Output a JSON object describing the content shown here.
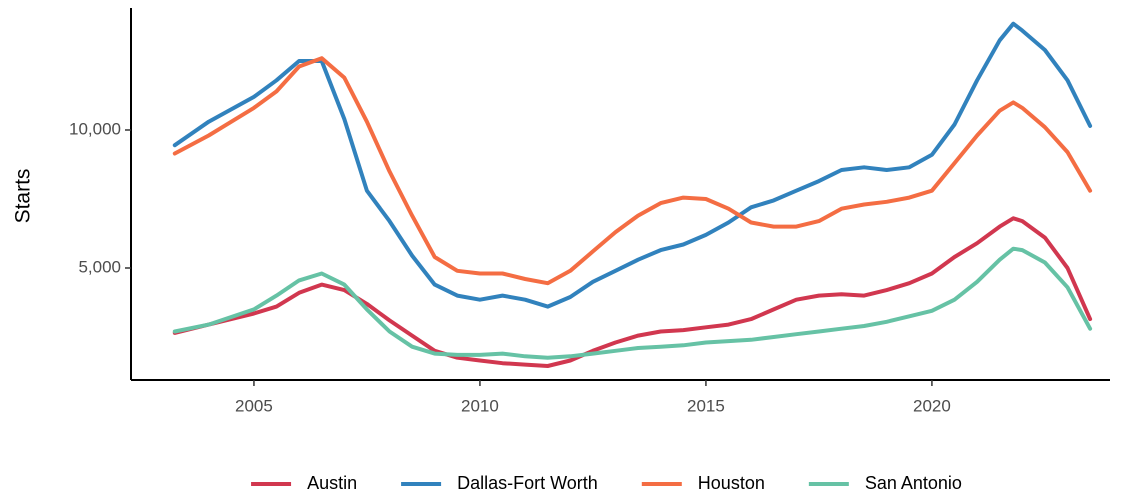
{
  "chart_data": {
    "type": "line",
    "y_label": "Starts",
    "x": [
      2003.25,
      2004,
      2005,
      2005.5,
      2006,
      2006.5,
      2007,
      2007.5,
      2008,
      2008.5,
      2009,
      2009.5,
      2010,
      2010.5,
      2011,
      2011.5,
      2012,
      2012.5,
      2013,
      2013.5,
      2014,
      2014.5,
      2015,
      2015.5,
      2016,
      2016.5,
      2017,
      2017.5,
      2018,
      2018.5,
      2019,
      2019.5,
      2020,
      2020.5,
      2021,
      2021.5,
      2021.8,
      2022,
      2022.5,
      2023,
      2023.5
    ],
    "series": [
      {
        "name": "Austin",
        "color": "#d1374f",
        "values": [
          2650,
          2950,
          3350,
          3600,
          4100,
          4400,
          4200,
          3700,
          3100,
          2550,
          2000,
          1750,
          1650,
          1550,
          1500,
          1450,
          1650,
          2000,
          2300,
          2550,
          2700,
          2750,
          2850,
          2950,
          3150,
          3500,
          3850,
          4000,
          4050,
          4000,
          4200,
          4450,
          4800,
          5400,
          5900,
          6500,
          6800,
          6700,
          6100,
          5000,
          3150
        ]
      },
      {
        "name": "Dallas-Fort Worth",
        "color": "#3182bd",
        "values": [
          9450,
          10300,
          11200,
          11800,
          12500,
          12500,
          10400,
          7800,
          6700,
          5450,
          4400,
          4000,
          3850,
          4000,
          3850,
          3600,
          3950,
          4500,
          4900,
          5300,
          5650,
          5850,
          6200,
          6650,
          7200,
          7450,
          7800,
          8150,
          8550,
          8650,
          8550,
          8650,
          9100,
          10200,
          11800,
          13250,
          13850,
          13600,
          12900,
          11800,
          10150
        ]
      },
      {
        "name": "Houston",
        "color": "#f46d43",
        "values": [
          9150,
          9800,
          10800,
          11400,
          12300,
          12600,
          11900,
          10300,
          8500,
          6900,
          5400,
          4900,
          4800,
          4800,
          4600,
          4450,
          4900,
          5600,
          6300,
          6900,
          7350,
          7550,
          7500,
          7150,
          6650,
          6500,
          6500,
          6700,
          7150,
          7300,
          7400,
          7550,
          7800,
          8800,
          9800,
          10700,
          11000,
          10800,
          10100,
          9200,
          7800
        ]
      },
      {
        "name": "San Antonio",
        "color": "#66c2a5",
        "values": [
          2700,
          2950,
          3500,
          4000,
          4550,
          4800,
          4400,
          3500,
          2700,
          2150,
          1900,
          1850,
          1850,
          1900,
          1800,
          1750,
          1800,
          1900,
          2000,
          2100,
          2150,
          2200,
          2300,
          2350,
          2400,
          2500,
          2600,
          2700,
          2800,
          2900,
          3050,
          3250,
          3450,
          3850,
          4500,
          5300,
          5700,
          5650,
          5200,
          4300,
          2800
        ]
      }
    ],
    "xlim": [
      2002.28,
      2023.94
    ],
    "xticks": [
      2005,
      2010,
      2015,
      2020
    ],
    "ylim": [
      942,
      14420
    ],
    "yticks": [
      {
        "value": 5000,
        "label": "5,000"
      },
      {
        "value": 10000,
        "label": "10,000"
      }
    ],
    "grid": false,
    "legend": "bottom"
  }
}
